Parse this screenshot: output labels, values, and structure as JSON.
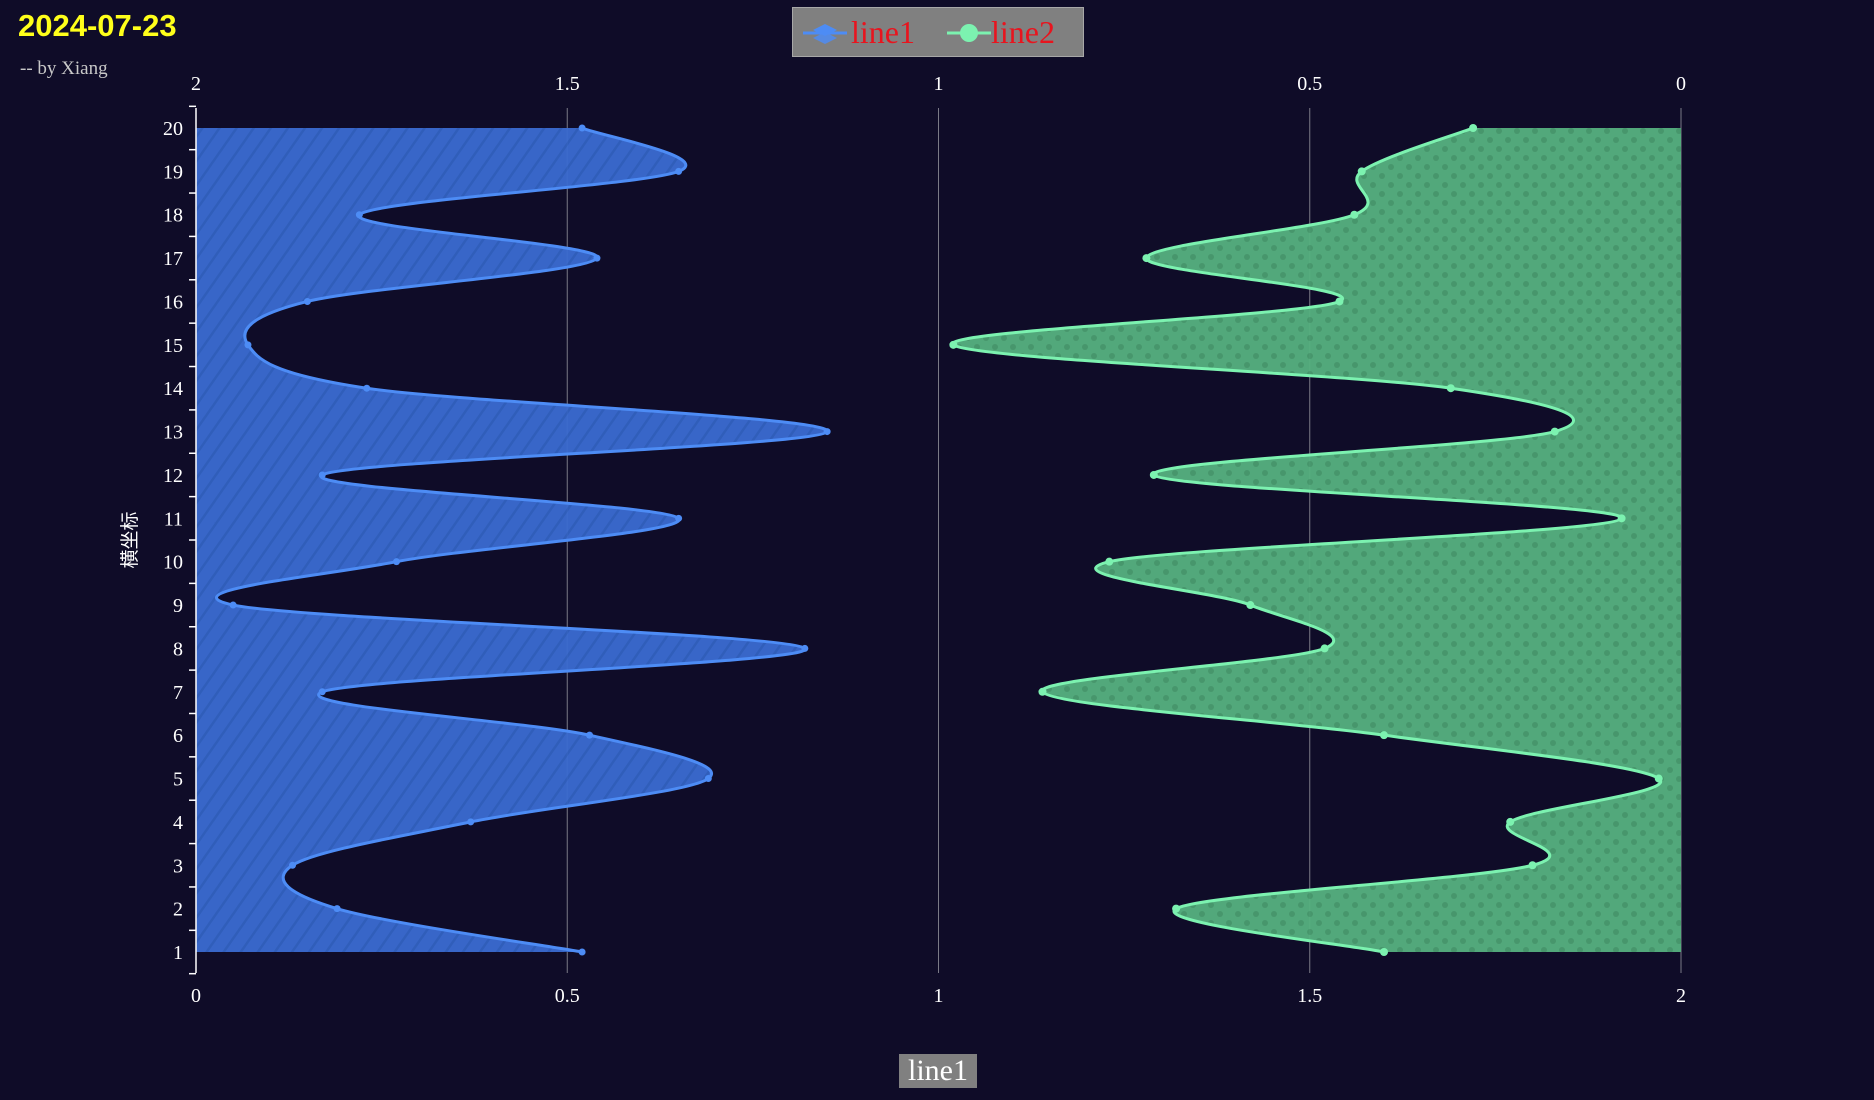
{
  "header": {
    "title": "2024-07-23",
    "subtitle": "-- by Xiang"
  },
  "legend": [
    {
      "name": "line1",
      "color": "#4d8cf5",
      "icon": "diamond-stack-icon"
    },
    {
      "name": "line2",
      "color": "#7cf2b0",
      "icon": "circle-marker-icon"
    }
  ],
  "xaxis_title": "line1",
  "colors": {
    "background": "#0f0c28",
    "line1_stroke": "#4d8cf5",
    "line1_fill": "#3a6bd0",
    "line2_stroke": "#7cf2b0",
    "line2_fill": "#55b07f",
    "title": "#ffff1a",
    "legend_text": "#e8141e",
    "grid": "#7a7a86"
  },
  "chart_data": {
    "type": "area",
    "orientation": "horizontal",
    "title": "2024-07-23",
    "subtitle": "-- by Xiang",
    "xlabel": "line1",
    "ylabel": "横坐标",
    "categories": [
      1,
      2,
      3,
      4,
      5,
      6,
      7,
      8,
      9,
      10,
      11,
      12,
      13,
      14,
      15,
      16,
      17,
      18,
      19,
      20
    ],
    "bottom_axis": {
      "range": [
        0,
        2
      ],
      "ticks": [
        "0",
        "0.5",
        "1",
        "1.5",
        "2"
      ]
    },
    "top_axis": {
      "range": [
        2,
        0
      ],
      "inverse": true,
      "ticks": [
        "2",
        "1.5",
        "1",
        "0.5",
        "0"
      ]
    },
    "grid": true,
    "smooth": true,
    "legend_position": "top-center",
    "series": [
      {
        "name": "line1",
        "axis": "bottom",
        "values": [
          0.52,
          0.19,
          0.13,
          0.37,
          0.69,
          0.53,
          0.17,
          0.82,
          0.05,
          0.27,
          0.65,
          0.17,
          0.85,
          0.23,
          0.07,
          0.15,
          0.54,
          0.22,
          0.65,
          0.52
        ]
      },
      {
        "name": "line2",
        "axis": "top",
        "values": [
          0.4,
          0.68,
          0.2,
          0.23,
          0.03,
          0.4,
          0.86,
          0.48,
          0.58,
          0.77,
          0.08,
          0.71,
          0.17,
          0.31,
          0.98,
          0.46,
          0.72,
          0.44,
          0.43,
          0.28
        ]
      }
    ]
  }
}
